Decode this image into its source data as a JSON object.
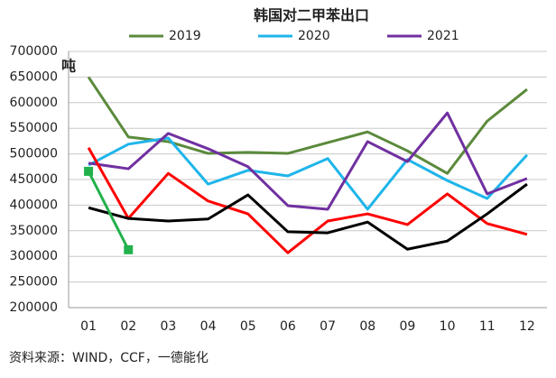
{
  "chart_data": {
    "type": "line",
    "title": "韩国对二甲苯出口",
    "y_label": "吨",
    "source": "资料来源：WIND，CCF，一德能化",
    "categories": [
      "01",
      "02",
      "03",
      "04",
      "05",
      "06",
      "07",
      "08",
      "09",
      "10",
      "11",
      "12"
    ],
    "series": [
      {
        "name": "2019",
        "color": "#5b8a3c",
        "values": [
          650000,
          533000,
          524000,
          501000,
          503000,
          501000,
          522000,
          543000,
          506000,
          462000,
          564000,
          626000
        ]
      },
      {
        "name": "2020",
        "color": "#1fb5ea",
        "values": [
          478000,
          519000,
          531000,
          441000,
          468000,
          457000,
          491000,
          392000,
          489000,
          448000,
          413000,
          498000
        ]
      },
      {
        "name": "2021",
        "color": "#7030a0",
        "values": [
          482000,
          471000,
          540000,
          510000,
          475000,
          399000,
          392000,
          524000,
          485000,
          580000,
          422000,
          452000
        ]
      },
      {
        "color": "#ff0000",
        "values": [
          512000,
          374000,
          462000,
          408000,
          383000,
          307000,
          369000,
          383000,
          362000,
          422000,
          364000,
          343000
        ]
      },
      {
        "color": "#000000",
        "values": [
          395000,
          374000,
          369000,
          373000,
          420000,
          348000,
          346000,
          367000,
          314000,
          330000,
          383000,
          441000
        ]
      },
      {
        "color": "#22b14c",
        "marker": "square",
        "values": [
          466000,
          313000,
          null,
          null,
          null,
          null,
          null,
          null,
          null,
          null,
          null,
          null
        ]
      }
    ],
    "ylim": [
      200000,
      700000
    ],
    "yticks": [
      200000,
      250000,
      300000,
      350000,
      400000,
      450000,
      500000,
      550000,
      600000,
      650000,
      700000
    ],
    "grid": true
  }
}
